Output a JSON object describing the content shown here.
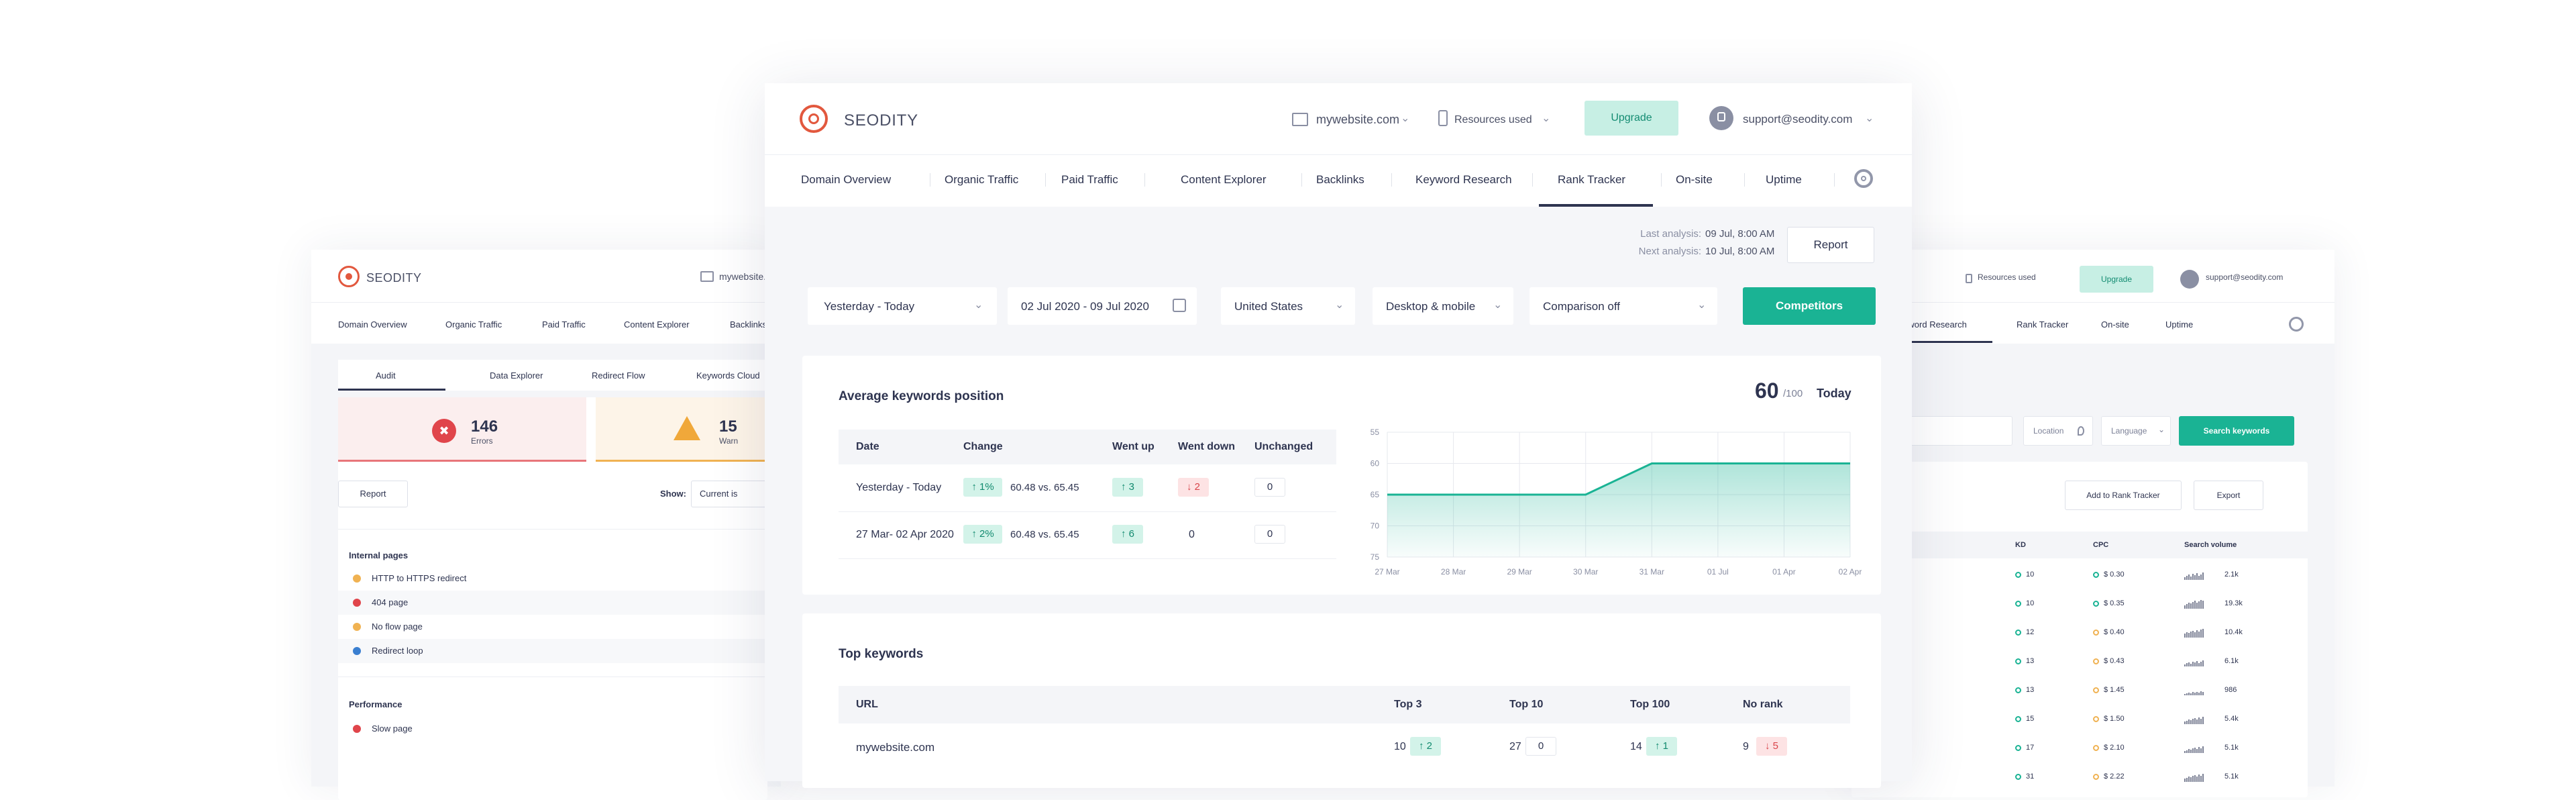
{
  "app": {
    "brand": "SEODITY",
    "domain": "mywebsite.com",
    "resources": "Resources used",
    "upgrade": "Upgrade",
    "account": "support@seodity.com"
  },
  "nav": [
    "Domain Overview",
    "Organic Traffic",
    "Paid Traffic",
    "Content Explorer",
    "Backlinks",
    "Keyword Research",
    "Rank Tracker",
    "On-site",
    "Uptime"
  ],
  "analysis": {
    "last_label": "Last analysis:",
    "last_value": "09 Jul, 8:00 AM",
    "next_label": "Next analysis:",
    "next_value": "10 Jul, 8:00 AM",
    "report": "Report"
  },
  "filters": {
    "range": "Yesterday - Today",
    "dates": "02 Jul 2020 - 09 Jul 2020",
    "country": "United States",
    "device": "Desktop & mobile",
    "comparison": "Comparison off",
    "competitors": "Competitors"
  },
  "avg": {
    "title": "Average keywords position",
    "score": "60",
    "score_max": "/100",
    "score_when": "Today",
    "headers": [
      "Date",
      "Change",
      "Went up",
      "Went down",
      "Unchanged"
    ],
    "rows": [
      {
        "date": "Yesterday - Today",
        "change": "1%",
        "compare": "60.48 vs. 65.45",
        "up": "3",
        "down": "2",
        "unchanged": "0"
      },
      {
        "date": "27 Mar- 02 Apr 2020",
        "change": "2%",
        "compare": "60.48 vs. 65.45",
        "up": "6",
        "down": "0",
        "unchanged": "0"
      }
    ]
  },
  "chart_data": {
    "type": "area",
    "categories": [
      "27 Mar",
      "28 Mar",
      "29 Mar",
      "30 Mar",
      "31 Mar",
      "01 Jul",
      "01 Apr",
      "02 Apr"
    ],
    "values": [
      65,
      65,
      65,
      65,
      60,
      60,
      60,
      60
    ],
    "y_ticks": [
      "55",
      "60",
      "65",
      "70",
      "75"
    ],
    "ylim": [
      55,
      75
    ],
    "y_inverted": true,
    "grid": true,
    "color": "#1ab394"
  },
  "top": {
    "title": "Top keywords",
    "headers": [
      "URL",
      "Top 3",
      "Top 10",
      "Top 100",
      "No rank"
    ],
    "row": {
      "url": "mywebsite.com",
      "top3": "10",
      "top3_delta": "2",
      "top10": "27",
      "top10_delta": "0",
      "top100": "14",
      "top100_delta": "1",
      "norank": "9",
      "norank_delta": "5"
    }
  },
  "left": {
    "tabs": [
      "Audit",
      "Data Explorer",
      "Redirect Flow",
      "Keywords Cloud"
    ],
    "errors_count": "146",
    "errors_label": "Errors",
    "warn_count": "15",
    "warn_label": "Warn",
    "report": "Report",
    "show_label": "Show:",
    "show_value": "Current is",
    "internal_title": "Internal pages",
    "internal_items": [
      "HTTP to HTTPS redirect",
      "404 page",
      "No flow page",
      "Redirect loop"
    ],
    "perf_title": "Performance",
    "perf_items": [
      "Slow page"
    ]
  },
  "right": {
    "location": "Location",
    "language": "Language",
    "search": "Search keywords",
    "add": "Add to Rank Tracker",
    "export": "Export",
    "headers": [
      "KD",
      "CPC",
      "Search volume"
    ],
    "rows": [
      {
        "kd": "10",
        "cpc": "$ 0.30",
        "vol": "2.1k"
      },
      {
        "kd": "10",
        "cpc": "$ 0.35",
        "vol": "19.3k"
      },
      {
        "kd": "12",
        "cpc": "$ 0.40",
        "vol": "10.4k"
      },
      {
        "kd": "13",
        "cpc": "$ 0.43",
        "vol": "6.1k"
      },
      {
        "kd": "13",
        "cpc": "$ 1.45",
        "vol": "986"
      },
      {
        "kd": "15",
        "cpc": "$ 1.50",
        "vol": "5.4k"
      },
      {
        "kd": "17",
        "cpc": "$ 2.10",
        "vol": "5.1k"
      },
      {
        "kd": "31",
        "cpc": "$ 2.22",
        "vol": "5.1k"
      }
    ]
  }
}
